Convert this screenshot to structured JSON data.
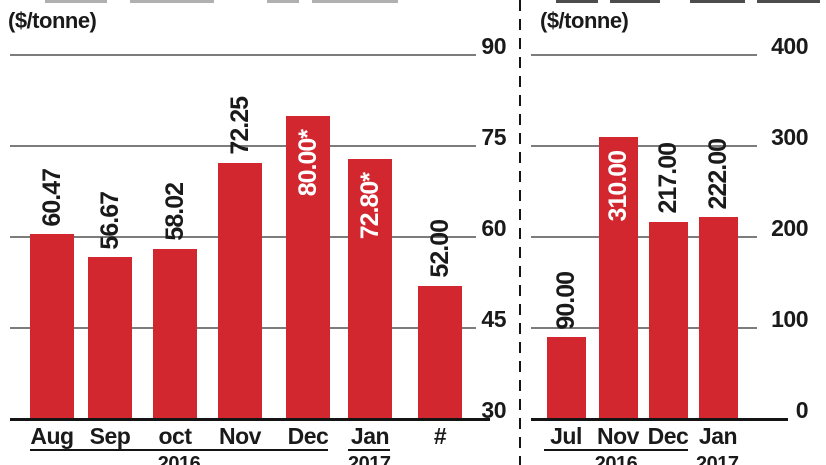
{
  "colors": {
    "bar": "#d32730",
    "gridline": "#7c7c7c",
    "axis": "#141414",
    "text": "#1a1a1a",
    "inside_label": "#ffffff",
    "background": "#ffffff"
  },
  "chart_data": [
    {
      "type": "bar",
      "panel": "left",
      "unit_label": "($/tonne)",
      "categories": [
        "Aug",
        "Sep",
        "oct",
        "Nov",
        "Dec",
        "Jan",
        "#"
      ],
      "values": [
        60.47,
        56.67,
        58.02,
        72.25,
        80.0,
        72.8,
        52.0
      ],
      "bar_labels": [
        "60.47",
        "56.67",
        "58.02",
        "72.25",
        "80.00*",
        "72.80*",
        "52.00"
      ],
      "label_inside": [
        false,
        false,
        false,
        false,
        true,
        true,
        false
      ],
      "ylim": [
        30,
        90
      ],
      "yticks": [
        30,
        45,
        60,
        75,
        90
      ],
      "grid": "horizontal",
      "legend": "none",
      "year_groups": [
        {
          "label": "2016",
          "from": 0,
          "to": 4,
          "underlined": true
        },
        {
          "label": "2017",
          "from": 5,
          "to": 5,
          "underlined": true
        }
      ]
    },
    {
      "type": "bar",
      "panel": "right",
      "unit_label": "($/tonne)",
      "categories": [
        "Jul",
        "Nov",
        "Dec",
        "Jan"
      ],
      "values": [
        90.0,
        310.0,
        217.0,
        222.0
      ],
      "bar_labels": [
        "90.00",
        "310.00",
        "217.00",
        "222.00"
      ],
      "label_inside": [
        false,
        true,
        false,
        false
      ],
      "ylim": [
        0,
        400
      ],
      "yticks": [
        0,
        100,
        200,
        300,
        400
      ],
      "grid": "horizontal",
      "legend": "none",
      "year_groups": [
        {
          "label": "2016",
          "from": 0,
          "to": 2,
          "underlined": true
        },
        {
          "label": "2017",
          "from": 3,
          "to": 3,
          "underlined": false
        }
      ]
    }
  ]
}
